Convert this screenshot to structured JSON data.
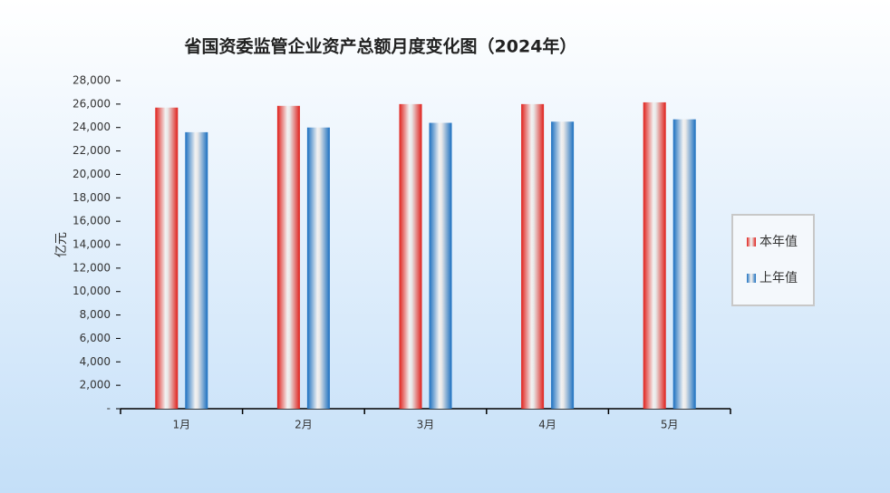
{
  "chart_data": {
    "type": "bar",
    "title": "省国资委监管企业资产总额月度变化图（2024年）",
    "y_label": "亿元",
    "categories": [
      "1月",
      "2月",
      "3月",
      "4月",
      "5月"
    ],
    "series": [
      {
        "name": "本年值",
        "color": "#e0201b",
        "values": [
          25700,
          25850,
          26000,
          26000,
          26150
        ]
      },
      {
        "name": "上年值",
        "color": "#1a6fc0",
        "values": [
          23600,
          24000,
          24400,
          24500,
          24700
        ]
      }
    ],
    "ylim": [
      0,
      28000
    ],
    "yticks": [
      {
        "value": 0,
        "label": "-"
      },
      {
        "value": 2000,
        "label": "2,000"
      },
      {
        "value": 4000,
        "label": "4,000"
      },
      {
        "value": 6000,
        "label": "6,000"
      },
      {
        "value": 8000,
        "label": "8,000"
      },
      {
        "value": 10000,
        "label": "10,000"
      },
      {
        "value": 12000,
        "label": "12,000"
      },
      {
        "value": 14000,
        "label": "14,000"
      },
      {
        "value": 16000,
        "label": "16,000"
      },
      {
        "value": 18000,
        "label": "18,000"
      },
      {
        "value": 20000,
        "label": "20,000"
      },
      {
        "value": 22000,
        "label": "22,000"
      },
      {
        "value": 24000,
        "label": "24,000"
      },
      {
        "value": 26000,
        "label": "26,000"
      },
      {
        "value": 28000,
        "label": "28,000"
      }
    ],
    "grid": false,
    "legend": "right"
  }
}
